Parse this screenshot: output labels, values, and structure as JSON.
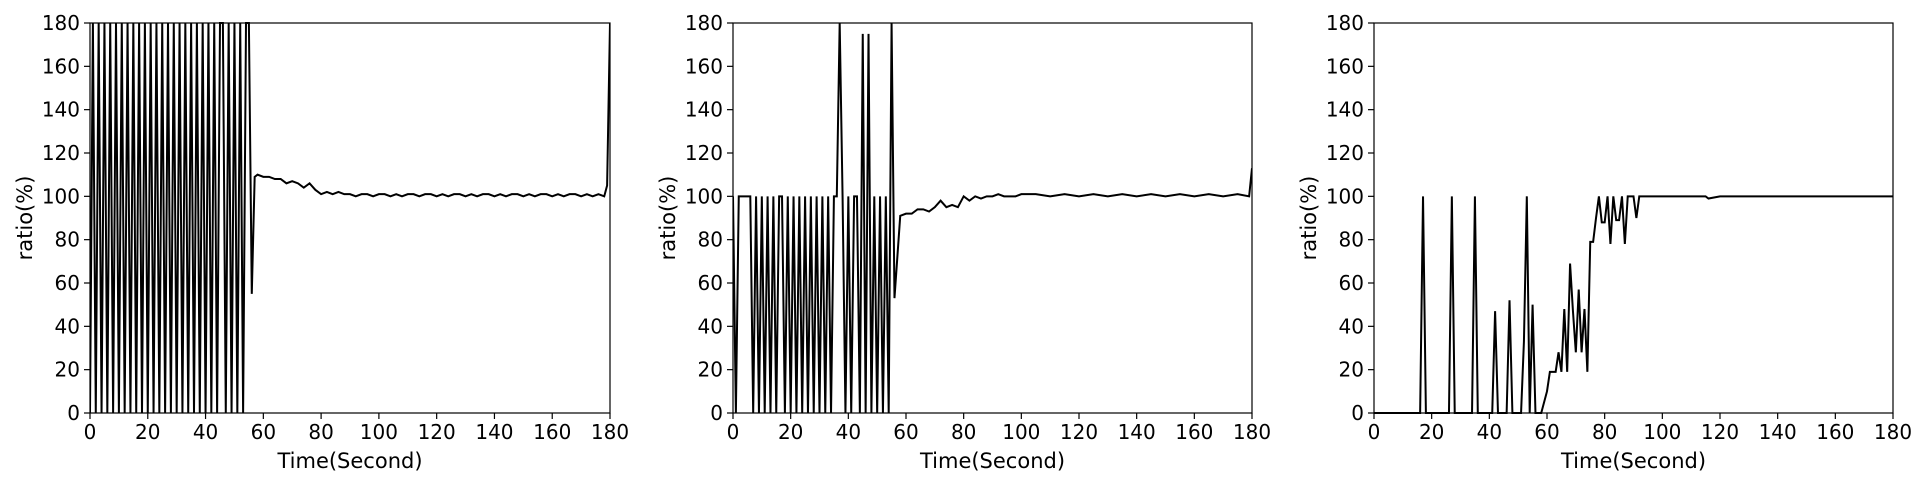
{
  "chart_data": [
    {
      "type": "line",
      "xlabel": "Time(Second)",
      "ylabel": "ratio(%)",
      "xlim": [
        0,
        180
      ],
      "ylim": [
        0,
        180
      ],
      "xticks": [
        0,
        20,
        40,
        60,
        80,
        100,
        120,
        140,
        160,
        180
      ],
      "yticks": [
        0,
        20,
        40,
        60,
        80,
        100,
        120,
        140,
        160,
        180
      ],
      "grid": false,
      "line_color": "#000000",
      "series": [
        {
          "x": [
            0,
            1,
            2,
            3,
            4,
            5,
            6,
            7,
            8,
            9,
            10,
            11,
            12,
            13,
            14,
            15,
            16,
            17,
            18,
            19,
            20,
            21,
            22,
            23,
            24,
            25,
            26,
            27,
            28,
            29,
            30,
            31,
            32,
            33,
            34,
            35,
            36,
            37,
            38,
            39,
            40,
            41,
            42,
            43,
            44,
            45,
            46,
            47,
            48,
            49,
            50,
            51,
            52,
            53,
            54,
            55,
            56,
            57,
            58,
            60,
            62,
            64,
            66,
            68,
            70,
            72,
            74,
            76,
            78,
            80,
            82,
            84,
            86,
            88,
            90,
            92,
            94,
            96,
            98,
            100,
            102,
            104,
            106,
            108,
            110,
            112,
            114,
            116,
            118,
            120,
            122,
            124,
            126,
            128,
            130,
            132,
            134,
            136,
            138,
            140,
            142,
            144,
            146,
            148,
            150,
            152,
            154,
            156,
            158,
            160,
            162,
            164,
            166,
            168,
            170,
            172,
            174,
            176,
            178,
            179,
            180
          ],
          "y": [
            0,
            180,
            0,
            180,
            0,
            180,
            0,
            180,
            0,
            180,
            0,
            180,
            0,
            180,
            0,
            180,
            0,
            180,
            0,
            180,
            0,
            180,
            0,
            180,
            0,
            180,
            0,
            180,
            0,
            180,
            0,
            180,
            0,
            180,
            0,
            180,
            0,
            180,
            0,
            180,
            0,
            180,
            0,
            180,
            0,
            180,
            180,
            0,
            180,
            0,
            180,
            0,
            180,
            0,
            180,
            180,
            55,
            109,
            110,
            109,
            109,
            108,
            108,
            106,
            107,
            106,
            104,
            106,
            103,
            101,
            102,
            101,
            102,
            101,
            101,
            100,
            101,
            101,
            100,
            101,
            101,
            100,
            101,
            100,
            101,
            101,
            100,
            101,
            101,
            100,
            101,
            100,
            101,
            101,
            100,
            101,
            100,
            101,
            101,
            100,
            101,
            100,
            101,
            101,
            100,
            101,
            100,
            101,
            101,
            100,
            101,
            100,
            101,
            101,
            100,
            101,
            100,
            101,
            100,
            105,
            180
          ]
        }
      ]
    },
    {
      "type": "line",
      "xlabel": "Time(Second)",
      "ylabel": "ratio(%)",
      "xlim": [
        0,
        180
      ],
      "ylim": [
        0,
        180
      ],
      "xticks": [
        0,
        20,
        40,
        60,
        80,
        100,
        120,
        140,
        160,
        180
      ],
      "yticks": [
        0,
        20,
        40,
        60,
        80,
        100,
        120,
        140,
        160,
        180
      ],
      "grid": false,
      "line_color": "#000000",
      "series": [
        {
          "x": [
            0,
            1,
            2,
            3,
            4,
            5,
            6,
            7,
            8,
            9,
            10,
            11,
            12,
            13,
            14,
            15,
            16,
            17,
            18,
            19,
            20,
            21,
            22,
            23,
            24,
            25,
            26,
            27,
            28,
            29,
            30,
            31,
            32,
            33,
            34,
            35,
            36,
            37,
            38,
            39,
            40,
            41,
            42,
            43,
            44,
            45,
            46,
            47,
            48,
            49,
            50,
            51,
            52,
            53,
            54,
            55,
            56,
            58,
            60,
            62,
            64,
            66,
            68,
            70,
            72,
            74,
            76,
            78,
            80,
            82,
            84,
            86,
            88,
            90,
            92,
            94,
            96,
            98,
            100,
            105,
            110,
            115,
            120,
            125,
            130,
            135,
            140,
            145,
            150,
            155,
            160,
            165,
            170,
            175,
            179,
            180
          ],
          "y": [
            100,
            0,
            100,
            100,
            100,
            100,
            100,
            0,
            100,
            0,
            100,
            0,
            100,
            0,
            100,
            0,
            100,
            100,
            0,
            100,
            0,
            100,
            0,
            100,
            0,
            100,
            0,
            100,
            0,
            100,
            0,
            100,
            0,
            100,
            0,
            100,
            100,
            180,
            100,
            0,
            100,
            0,
            100,
            100,
            0,
            175,
            0,
            175,
            0,
            100,
            0,
            100,
            0,
            100,
            0,
            180,
            53,
            91,
            92,
            92,
            94,
            94,
            93,
            95,
            98,
            95,
            96,
            95,
            100,
            98,
            100,
            99,
            100,
            100,
            101,
            100,
            100,
            100,
            101,
            101,
            100,
            101,
            100,
            101,
            100,
            101,
            100,
            101,
            100,
            101,
            100,
            101,
            100,
            101,
            100,
            113
          ]
        }
      ]
    },
    {
      "type": "line",
      "xlabel": "Time(Second)",
      "ylabel": "ratio(%)",
      "xlim": [
        0,
        180
      ],
      "ylim": [
        0,
        180
      ],
      "xticks": [
        0,
        20,
        40,
        60,
        80,
        100,
        120,
        140,
        160,
        180
      ],
      "yticks": [
        0,
        20,
        40,
        60,
        80,
        100,
        120,
        140,
        160,
        180
      ],
      "grid": false,
      "line_color": "#000000",
      "series": [
        {
          "x": [
            0,
            16,
            17,
            18,
            26,
            27,
            28,
            34,
            35,
            36,
            41,
            42,
            43,
            46,
            47,
            48,
            51,
            52,
            53,
            54,
            55,
            56,
            58,
            60,
            61,
            62,
            63,
            64,
            65,
            66,
            67,
            68,
            69,
            70,
            71,
            72,
            73,
            74,
            75,
            76,
            77,
            78,
            79,
            80,
            81,
            82,
            83,
            84,
            85,
            86,
            87,
            88,
            89,
            90,
            91,
            92,
            93,
            94,
            95,
            100,
            110,
            115,
            116,
            120,
            140,
            160,
            180
          ],
          "y": [
            0,
            0,
            100,
            0,
            0,
            100,
            0,
            0,
            100,
            0,
            0,
            47,
            0,
            0,
            52,
            0,
            0,
            33,
            100,
            0,
            50,
            0,
            0,
            10,
            19,
            19,
            19,
            28,
            19,
            48,
            19,
            69,
            47,
            28,
            57,
            28,
            48,
            19,
            79,
            79,
            90,
            100,
            88,
            88,
            100,
            78,
            100,
            89,
            89,
            100,
            78,
            100,
            100,
            100,
            90,
            100,
            100,
            100,
            100,
            100,
            100,
            100,
            99,
            100,
            100,
            100,
            100
          ]
        }
      ]
    }
  ]
}
